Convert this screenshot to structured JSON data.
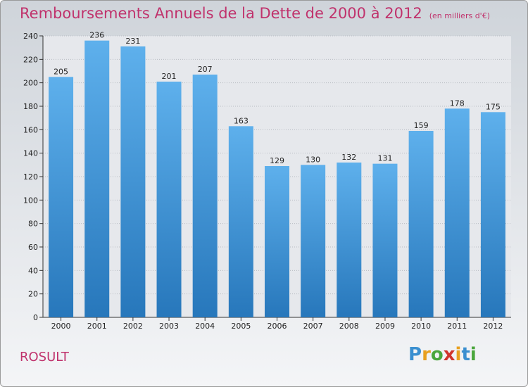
{
  "title": "Remboursements Annuels de la Dette de 2000 à 2012",
  "subtitle": "(en milliers d'€)",
  "commune": "ROSULT",
  "brand": {
    "letters": [
      "P",
      "r",
      "o",
      "x",
      "i",
      "t",
      "i"
    ],
    "colors": [
      "#3a8fd0",
      "#e8a020",
      "#4aa63c",
      "#d0342c",
      "#e8a020",
      "#3a8fd0",
      "#4aa63c"
    ]
  },
  "colors": {
    "bar_top": "#5eb0ec",
    "bar_bottom": "#2777bb",
    "title": "#c0326c"
  },
  "chart_data": {
    "type": "bar",
    "categories": [
      "2000",
      "2001",
      "2002",
      "2003",
      "2004",
      "2005",
      "2006",
      "2007",
      "2008",
      "2009",
      "2010",
      "2011",
      "2012"
    ],
    "values": [
      205,
      236,
      231,
      201,
      207,
      163,
      129,
      130,
      132,
      131,
      159,
      178,
      175
    ],
    "ylim": [
      0,
      240
    ],
    "yticks": [
      0,
      20,
      40,
      60,
      80,
      100,
      120,
      140,
      160,
      180,
      200,
      220,
      240
    ],
    "grid": true
  }
}
